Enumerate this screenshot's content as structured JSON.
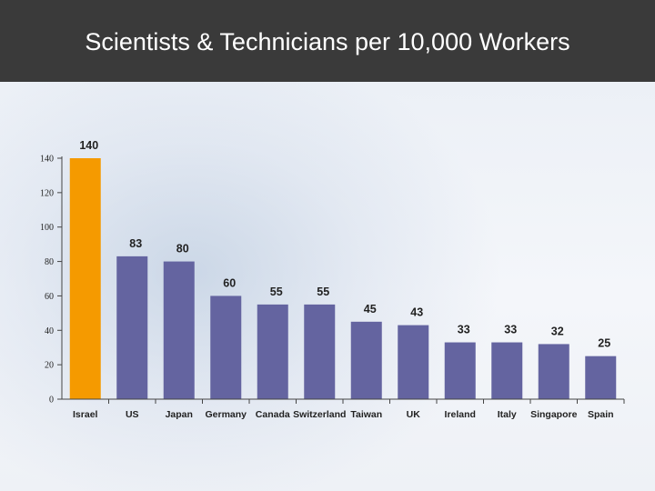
{
  "slide": {
    "title": "Scientists & Technicians per 10,000 Workers"
  },
  "colors": {
    "highlight_bar": "#f59a00",
    "default_bar": "#6464a0",
    "axis": "#444444",
    "title_bar_bg": "#3a3a3a"
  },
  "chart_data": {
    "type": "bar",
    "title": "Scientists & Technicians per 10,000 Workers",
    "categories": [
      "Israel",
      "US",
      "Japan",
      "Germany",
      "Canada",
      "Switzerland",
      "Taiwan",
      "UK",
      "Ireland",
      "Italy",
      "Singapore",
      "Spain"
    ],
    "values": [
      140,
      83,
      80,
      60,
      55,
      55,
      45,
      43,
      33,
      33,
      32,
      25
    ],
    "highlight": "Israel",
    "ylim": [
      0,
      140
    ],
    "yticks": [
      0,
      20,
      40,
      60,
      80,
      100,
      120,
      140
    ],
    "grid": false,
    "xlabel": "",
    "ylabel": ""
  }
}
